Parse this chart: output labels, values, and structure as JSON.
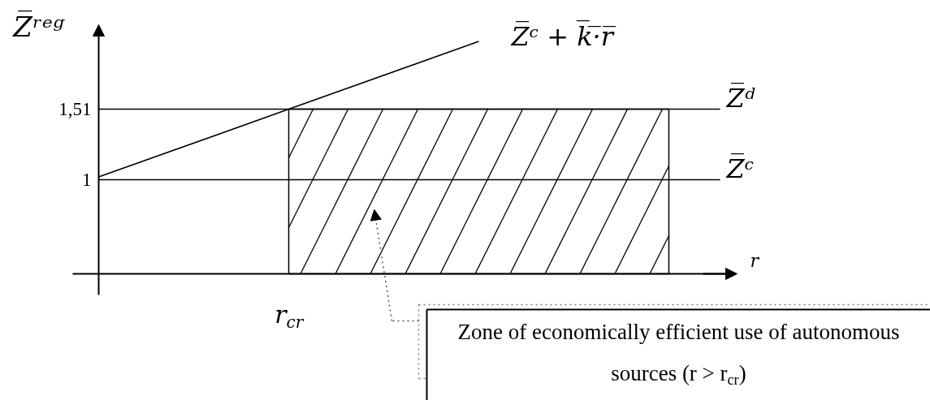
{
  "chart_data": {
    "type": "line",
    "xlabel": "r",
    "ylabel": "Z̅ʳᵉᵍ",
    "categories": [
      null,
      "r$_{cr}$",
      null,
      null
    ],
    "ylim": [
      0.32,
      2.12
    ],
    "yticks": [
      {
        "value": 1,
        "label": "1"
      },
      {
        "value": 1.51,
        "label": "1,51"
      }
    ],
    "grid": false,
    "series": [
      {
        "name": "Z̅ᶜ + k̅·̅r̅",
        "color": "#000000",
        "values": [
          1.02,
          1.51,
          2.0,
          null
        ]
      },
      {
        "type": "area",
        "color": "#000000",
        "values": [
          null,
          1.51,
          1.51,
          1.51
        ]
      }
    ],
    "ref_lines": [
      {
        "axis": "y",
        "value": 1.51,
        "label": "Z̅ᵈ"
      },
      {
        "axis": "y",
        "value": 1,
        "label": "Z̅ᶜ"
      }
    ],
    "annotations": [
      "Zone of economically efficient use of autonomous sources (r > r$_{cr}$)"
    ]
  }
}
